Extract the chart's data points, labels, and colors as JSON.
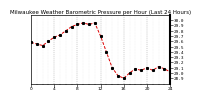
{
  "title": "Milwaukee Weather Barometric Pressure per Hour (Last 24 Hours)",
  "x_values": [
    0,
    1,
    2,
    3,
    4,
    5,
    6,
    7,
    8,
    9,
    10,
    11,
    12,
    13,
    14,
    15,
    16,
    17,
    18,
    19,
    20,
    21,
    22,
    23,
    24
  ],
  "y_values": [
    29.58,
    29.55,
    29.52,
    29.6,
    29.68,
    29.72,
    29.8,
    29.88,
    29.92,
    29.95,
    29.92,
    29.95,
    29.7,
    29.4,
    29.1,
    28.95,
    28.9,
    29.0,
    29.08,
    29.05,
    29.1,
    29.05,
    29.12,
    29.08,
    29.02
  ],
  "ylim": [
    28.8,
    30.1
  ],
  "ytick_vals": [
    28.9,
    29.0,
    29.1,
    29.2,
    29.3,
    29.4,
    29.5,
    29.6,
    29.7,
    29.8,
    29.9,
    30.0
  ],
  "ytick_labels": [
    "28.9",
    "29.0",
    "29.1",
    "29.2",
    "29.3",
    "29.4",
    "29.5",
    "29.6",
    "29.7",
    "29.8",
    "29.9",
    "30.0"
  ],
  "xlim": [
    0,
    24
  ],
  "xtick_major": [
    0,
    4,
    8,
    12,
    16,
    20,
    24
  ],
  "xtick_minor_step": 1,
  "line_color": "#dd0000",
  "marker_color": "#000000",
  "bg_color": "#ffffff",
  "grid_color": "#999999",
  "title_fontsize": 4.0,
  "tick_fontsize": 3.2,
  "line_width": 0.7,
  "marker_size": 1.2,
  "right_border_color": "#000000"
}
